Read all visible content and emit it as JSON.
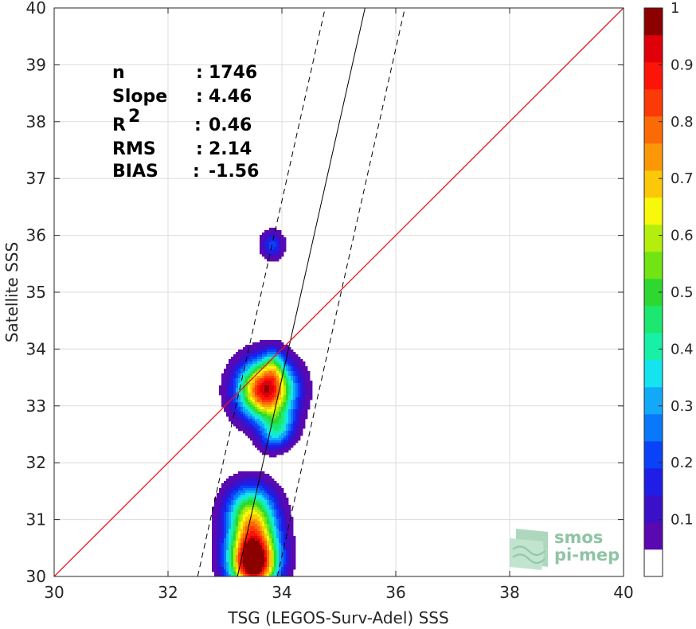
{
  "chart_data": {
    "type": "heatmap",
    "subtype": "filled-contour density scatter (normalized)",
    "xlabel": "TSG (LEGOS-Surv-Adel) SSS",
    "ylabel": "Satellite SSS",
    "xlim": [
      30,
      40
    ],
    "ylim": [
      30,
      40
    ],
    "xticks": [
      "30",
      "32",
      "34",
      "36",
      "38",
      "40"
    ],
    "yticks": [
      "30",
      "31",
      "32",
      "33",
      "34",
      "35",
      "36",
      "37",
      "38",
      "39",
      "40"
    ],
    "grid": true,
    "stats": [
      {
        "name": "n",
        "sep": ":",
        "value": "1746"
      },
      {
        "name": "Slope",
        "sep": ":",
        "value": "4.46"
      },
      {
        "name": "R",
        "sup": "2",
        "sep": ":",
        "value": "0.46"
      },
      {
        "name": "RMS",
        "sep": ":",
        "value": "2.14"
      },
      {
        "name": "BIAS",
        "sep": ":",
        "value": "-1.56"
      }
    ],
    "reference_line": {
      "label": "1:1",
      "points": [
        [
          30,
          30
        ],
        [
          40,
          40
        ]
      ],
      "color": "#e8141c"
    },
    "fit_line": {
      "points": [
        [
          33.22,
          30
        ],
        [
          35.46,
          40
        ]
      ],
      "color": "#000000",
      "style": "solid"
    },
    "bound_lines": [
      {
        "points": [
          [
            32.52,
            30
          ],
          [
            34.76,
            40
          ]
        ],
        "style": "dashed"
      },
      {
        "points": [
          [
            33.92,
            30
          ],
          [
            36.16,
            40
          ]
        ],
        "style": "dashed"
      }
    ],
    "density_clusters": [
      {
        "center": [
          33.83,
          35.83
        ],
        "peak": 0.22,
        "spread": [
          0.14,
          0.17
        ]
      },
      {
        "center": [
          33.72,
          33.28
        ],
        "peak": 1.0,
        "spread": [
          0.33,
          0.35
        ]
      },
      {
        "center": [
          33.85,
          33.72
        ],
        "peak": 0.2,
        "spread": [
          0.12,
          0.2
        ]
      },
      {
        "center": [
          33.95,
          32.62
        ],
        "peak": 0.3,
        "spread": [
          0.2,
          0.22
        ]
      },
      {
        "center": [
          33.8,
          32.4
        ],
        "peak": 0.12,
        "spread": [
          0.16,
          0.16
        ]
      },
      {
        "center": [
          33.45,
          31.2
        ],
        "peak": 0.42,
        "spread": [
          0.3,
          0.32
        ]
      },
      {
        "center": [
          33.5,
          30.6
        ],
        "peak": 0.72,
        "spread": [
          0.3,
          0.38
        ]
      },
      {
        "center": [
          33.5,
          30.15
        ],
        "peak": 0.82,
        "spread": [
          0.28,
          0.3
        ]
      }
    ],
    "colorbar": {
      "ticks": [
        "0.1",
        "0.2",
        "0.3",
        "0.4",
        "0.5",
        "0.6",
        "0.7",
        "0.8",
        "0.9",
        "1"
      ],
      "range": [
        0,
        1
      ],
      "levels": [
        "#ffffff",
        "#5a08b0",
        "#3a10c8",
        "#1e1ee6",
        "#0a42fa",
        "#0a78fa",
        "#12aaf8",
        "#14e4f0",
        "#18f0a8",
        "#1ce870",
        "#2ed830",
        "#72e414",
        "#b4ee0c",
        "#f8f80c",
        "#fcc808",
        "#fc9808",
        "#fc6a08",
        "#fc3a08",
        "#fc1408",
        "#e0000a",
        "#8c0000"
      ]
    }
  },
  "logo": {
    "line1": "smos",
    "line2": "pi-mep"
  }
}
